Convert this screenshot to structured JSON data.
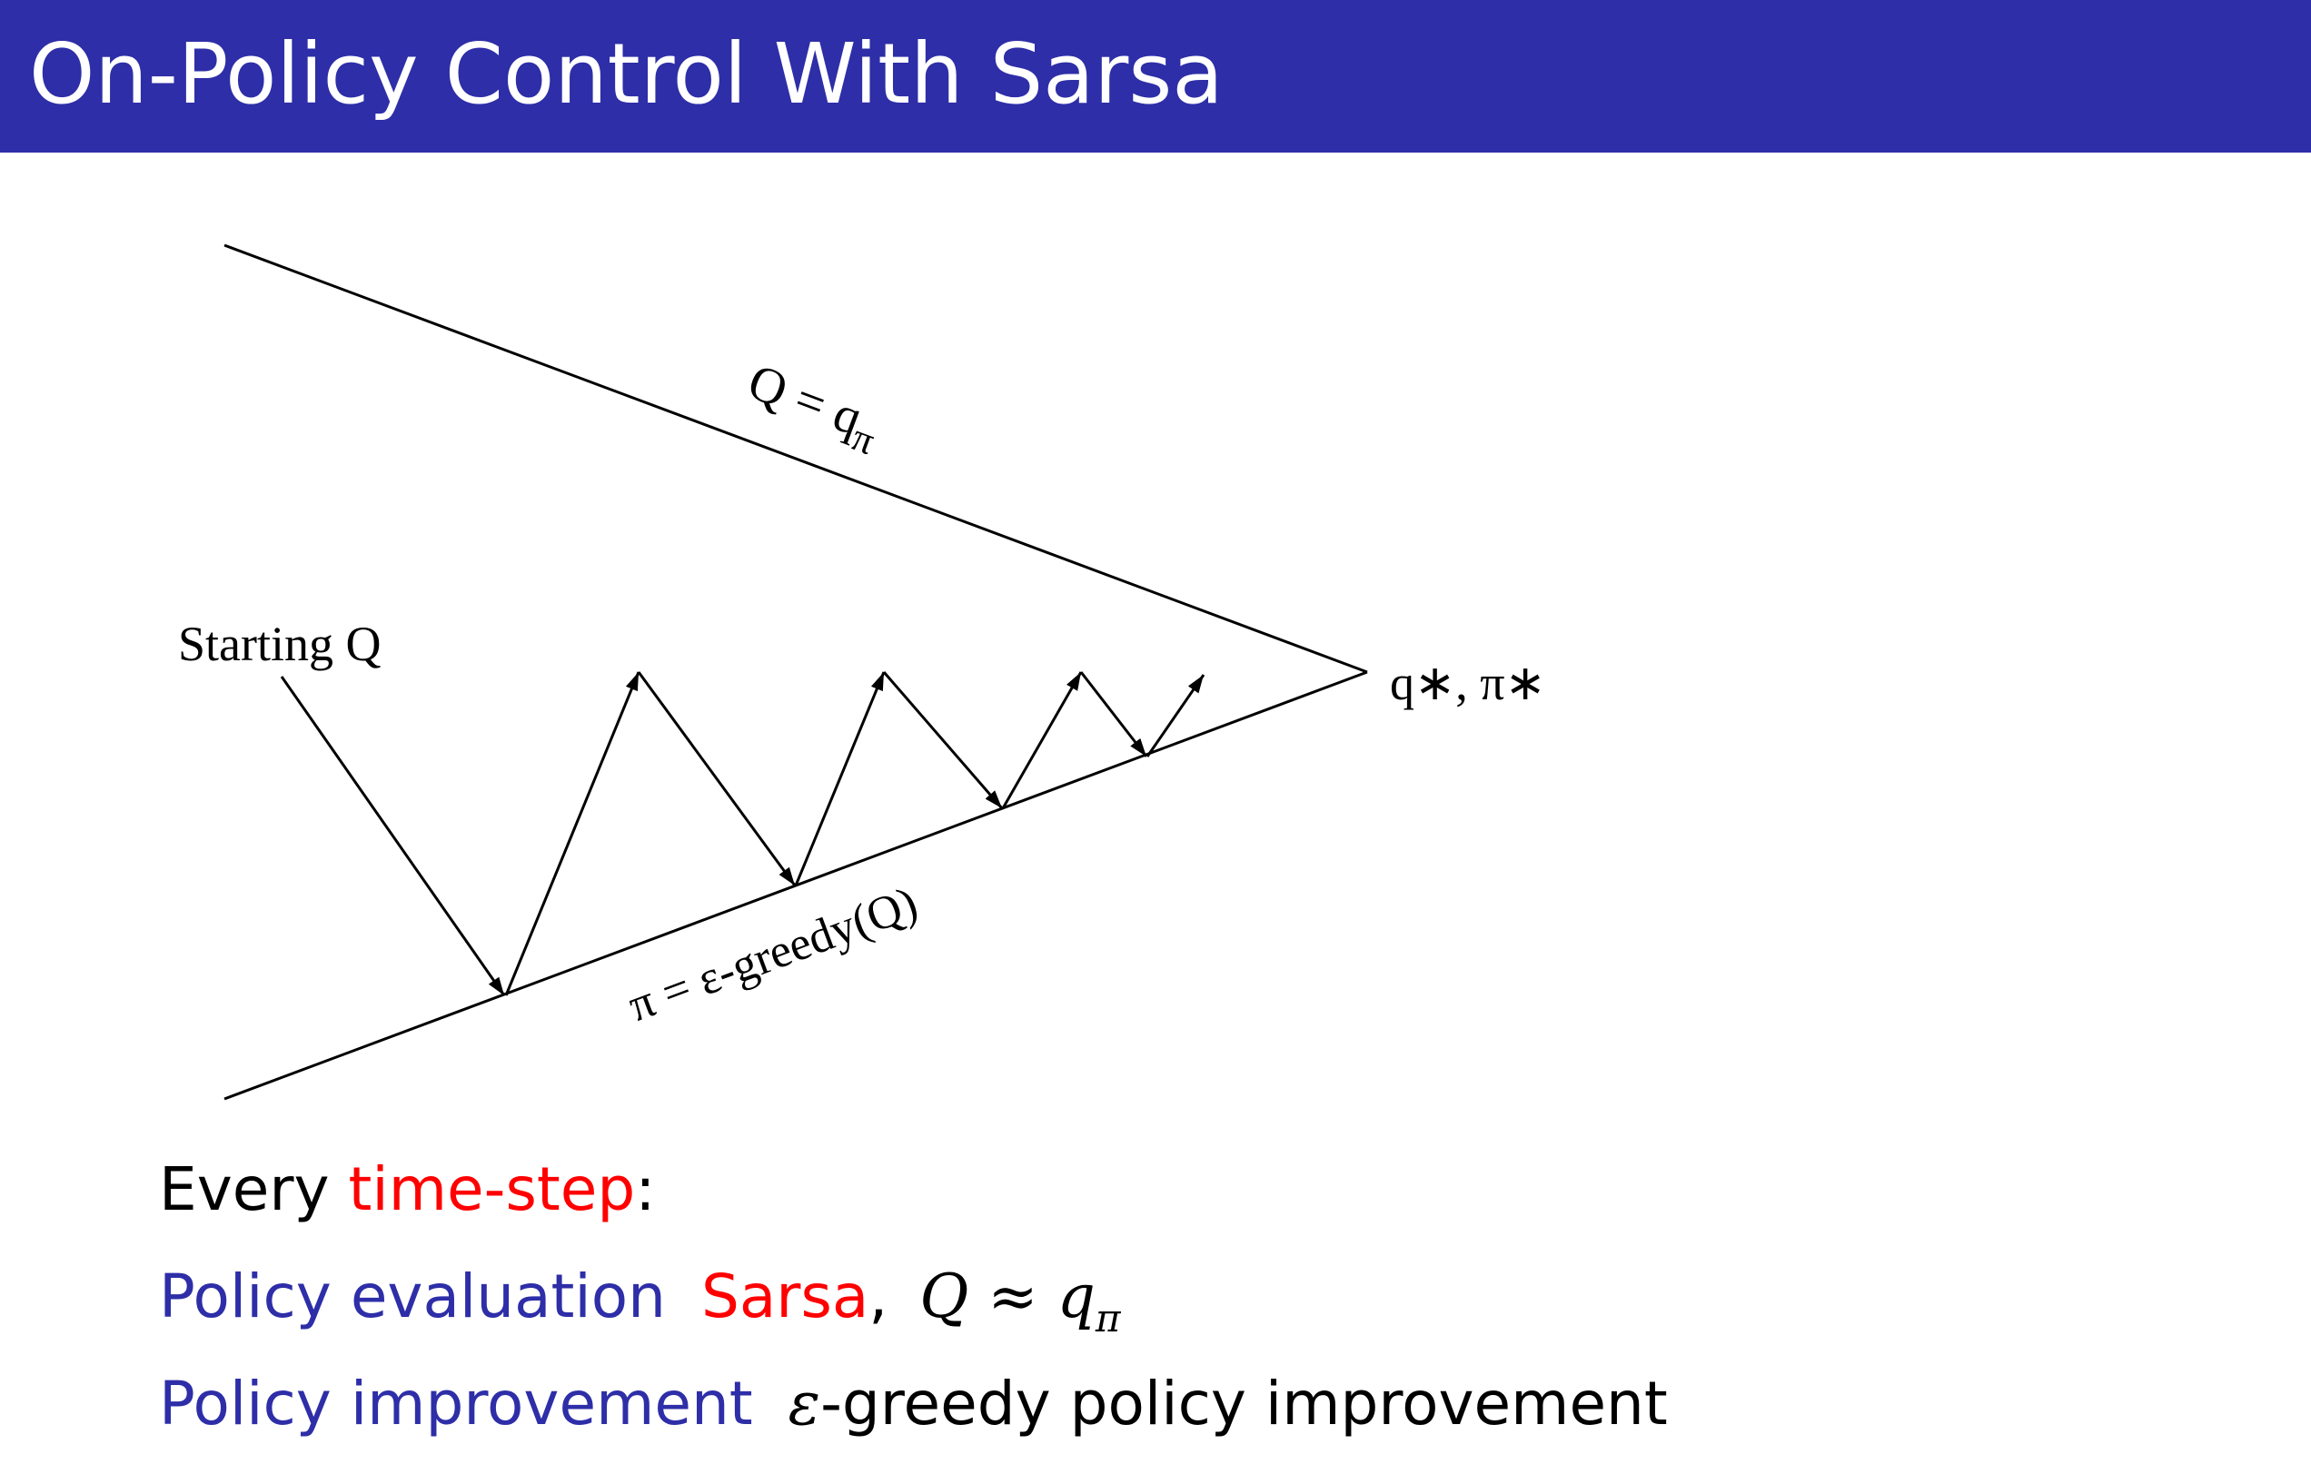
{
  "title": "On-Policy Control With Sarsa",
  "colors": {
    "title_bar": "#2e2ea8",
    "title_text": "#ffffff",
    "accent_blue": "#2e2ea8",
    "accent_red": "#ff0000",
    "text": "#000000"
  },
  "diagram": {
    "upper_line_label": {
      "main": "Q = q",
      "sub": "π"
    },
    "lower_line_label": "π = ε-greedy(Q)",
    "start_label": "Starting Q",
    "end_label": "q∗, π∗"
  },
  "lines": {
    "line1": {
      "prefix": "Every ",
      "highlight": "time-step",
      "suffix": ":"
    },
    "line2": {
      "label": "Policy evaluation",
      "method": "Sarsa",
      "comma": ",",
      "math_main": "Q ≈ q",
      "math_sub": "π"
    },
    "line3": {
      "label": "Policy improvement",
      "epsilon": "ε",
      "text": "-greedy policy improvement"
    }
  }
}
